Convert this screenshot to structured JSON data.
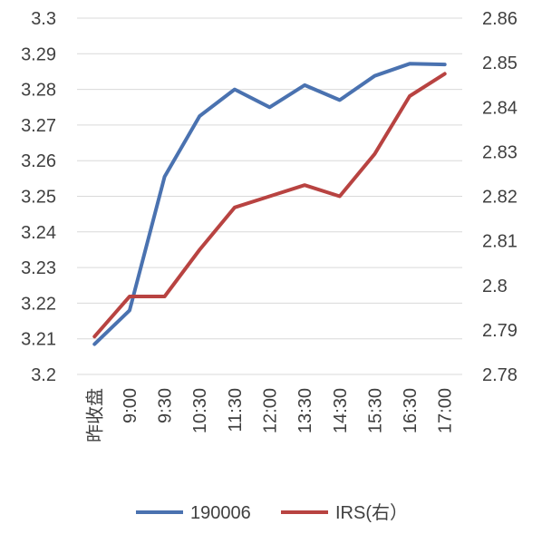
{
  "chart_data": {
    "type": "line",
    "title": "",
    "xlabel": "",
    "ylabel": "",
    "y2label": "",
    "categories": [
      "昨收盘",
      "9:00",
      "9:30",
      "10:30",
      "11:30",
      "12:00",
      "13:30",
      "14:30",
      "15:30",
      "16:30",
      "17:00"
    ],
    "ylim": [
      3.2,
      3.3
    ],
    "y_ticks": [
      "3.2",
      "3.21",
      "3.22",
      "3.23",
      "3.24",
      "3.25",
      "3.26",
      "3.27",
      "3.28",
      "3.29",
      "3.3"
    ],
    "y2lim": [
      2.78,
      2.86
    ],
    "y2_ticks": [
      "2.78",
      "2.79",
      "2.8",
      "2.81",
      "2.82",
      "2.83",
      "2.84",
      "2.85",
      "2.86"
    ],
    "grid": true,
    "legend_position": "bottom",
    "series": [
      {
        "name": "190006",
        "axis": "left",
        "color": "#4a72b0",
        "values": [
          3.2085,
          3.218,
          3.2555,
          3.2725,
          3.28,
          3.275,
          3.2812,
          3.277,
          3.2838,
          3.2872,
          3.287
        ]
      },
      {
        "name": "IRS(右）",
        "axis": "right",
        "color": "#b84341",
        "values": [
          2.7885,
          2.7975,
          2.7975,
          2.808,
          2.8175,
          2.82,
          2.8225,
          2.82,
          2.8295,
          2.8425,
          2.8475
        ]
      }
    ]
  }
}
